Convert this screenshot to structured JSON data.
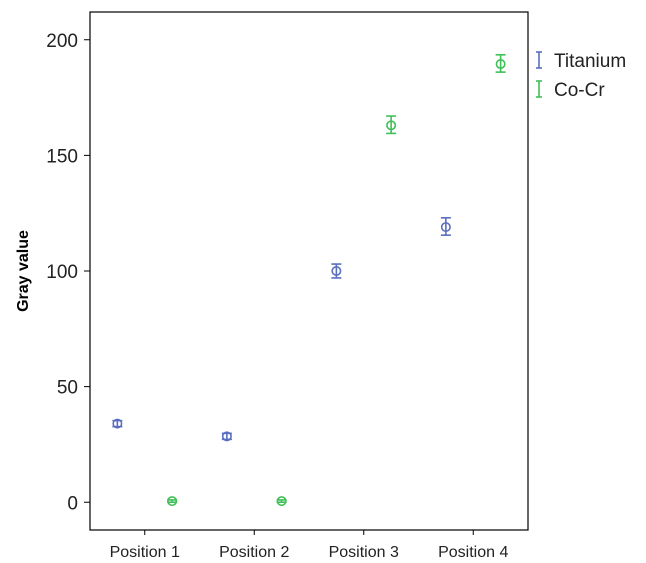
{
  "chart_data": {
    "type": "scatter",
    "categories": [
      "Position 1",
      "Position 2",
      "Position 3",
      "Position 4"
    ],
    "ylabel": "Gray value",
    "xlabel": "",
    "ylim": [
      -12,
      212
    ],
    "yticks": [
      0,
      50,
      100,
      150,
      200
    ],
    "grid": false,
    "legend": "right-top",
    "series": [
      {
        "name": "Titanium",
        "color": "#5a6fbf",
        "offset": -0.25,
        "points": [
          {
            "mean": 34,
            "low": 32.7,
            "high": 35.3
          },
          {
            "mean": 28.5,
            "low": 27.2,
            "high": 29.8
          },
          {
            "mean": 100,
            "low": 97,
            "high": 103
          },
          {
            "mean": 119,
            "low": 115.5,
            "high": 123
          }
        ]
      },
      {
        "name": "Co-Cr",
        "color": "#3fbf58",
        "offset": 0.25,
        "points": [
          {
            "mean": 0.5,
            "low": 0,
            "high": 1
          },
          {
            "mean": 0.5,
            "low": 0,
            "high": 1
          },
          {
            "mean": 163,
            "low": 159.5,
            "high": 167
          },
          {
            "mean": 189.5,
            "low": 186,
            "high": 193.5
          }
        ]
      }
    ]
  }
}
